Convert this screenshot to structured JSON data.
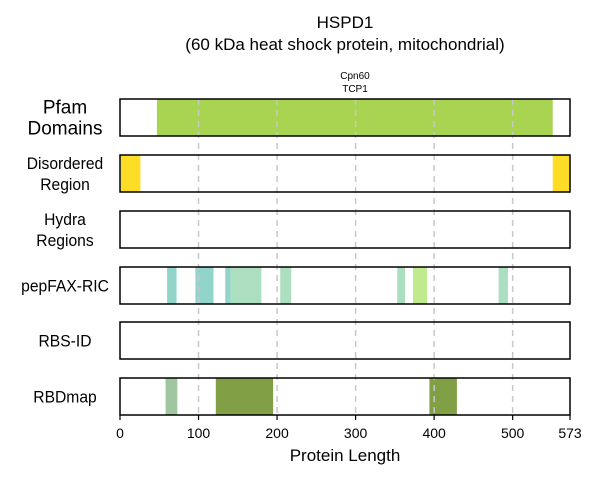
{
  "chart_data": {
    "type": "bar",
    "title_line1": "HSPD1",
    "title_line2": "(60 kDa heat shock protein, mitochondrial)",
    "xlabel": "Protein Length",
    "xlim": [
      0,
      573
    ],
    "xticks": [
      0,
      100,
      200,
      300,
      400,
      500,
      573
    ],
    "grid": "dashed vertical at 100, 200, 300, 400, 500",
    "domain_annotations": [
      "Cpn60",
      "TCP1"
    ],
    "rows": [
      {
        "label_lines": [
          "Pfam",
          "Domains"
        ],
        "segments": [
          {
            "start": 47,
            "end": 551,
            "color": "#9ACD32"
          }
        ]
      },
      {
        "label_lines": [
          "Disordered",
          "Region"
        ],
        "segments": [
          {
            "start": 1,
            "end": 26,
            "color": "#FFD700"
          },
          {
            "start": 551,
            "end": 573,
            "color": "#FFD700"
          }
        ]
      },
      {
        "label_lines": [
          "Hydra",
          "Regions"
        ],
        "segments": []
      },
      {
        "label_lines": [
          "pepFAX-RIC"
        ],
        "segments": [
          {
            "start": 60,
            "end": 72,
            "color": "#7ECDBF"
          },
          {
            "start": 96,
            "end": 119,
            "color": "#7ECDBF"
          },
          {
            "start": 134,
            "end": 141,
            "color": "#7ECDBF"
          },
          {
            "start": 141,
            "end": 180,
            "color": "#9ED9B4"
          },
          {
            "start": 204,
            "end": 218,
            "color": "#9ED9B4"
          },
          {
            "start": 353,
            "end": 363,
            "color": "#9ED9B4"
          },
          {
            "start": 373,
            "end": 391,
            "color": "#B5E67A"
          },
          {
            "start": 482,
            "end": 494,
            "color": "#9ED9B4"
          }
        ]
      },
      {
        "label_lines": [
          "RBS-ID"
        ],
        "segments": []
      },
      {
        "label_lines": [
          "RBDmap"
        ],
        "segments": [
          {
            "start": 58,
            "end": 73,
            "color": "#8FBC8F"
          },
          {
            "start": 122,
            "end": 195,
            "color": "#6B8E23"
          },
          {
            "start": 394,
            "end": 429,
            "color": "#6B8E23"
          }
        ]
      }
    ]
  }
}
